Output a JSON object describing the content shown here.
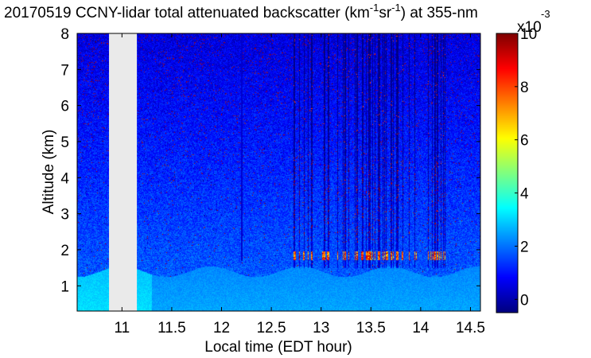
{
  "chart_data": {
    "type": "heatmap",
    "title": {
      "prefix": "20170519 CCNY-lidar total attenuated backscatter (km",
      "sup1": "-1",
      "mid": "sr",
      "sup2": "-1",
      "suffix": ") at 355-nm"
    },
    "xlabel": "Local time (EDT hour)",
    "ylabel": "Altitude (km)",
    "xlim": [
      10.55,
      14.6
    ],
    "ylim": [
      0.3,
      8.0
    ],
    "xticks": [
      11,
      11.5,
      12,
      12.5,
      13,
      13.5,
      14,
      14.5
    ],
    "xtick_labels": [
      "11",
      "11.5",
      "12",
      "12.5",
      "13",
      "13.5",
      "14",
      "14.5"
    ],
    "yticks": [
      1,
      2,
      3,
      4,
      5,
      6,
      7,
      8
    ],
    "ytick_labels": [
      "1",
      "2",
      "3",
      "4",
      "5",
      "6",
      "7",
      "8"
    ],
    "data_gap": {
      "from_hour": 10.87,
      "to_hour": 11.15
    },
    "features": {
      "boundary_layer_top_km": 1.4,
      "cloud_layer_altitude_km": 1.85,
      "cloud_period_hours": [
        12.7,
        14.25
      ]
    },
    "colorbar": {
      "min": -0.5,
      "max": 10,
      "ticks": [
        0,
        2,
        4,
        6,
        8,
        10
      ],
      "tick_labels": [
        "0",
        "2",
        "4",
        "6",
        "8",
        "10"
      ],
      "multiplier_base": "x10",
      "multiplier_exp": "-3",
      "colormap": "jet"
    }
  }
}
